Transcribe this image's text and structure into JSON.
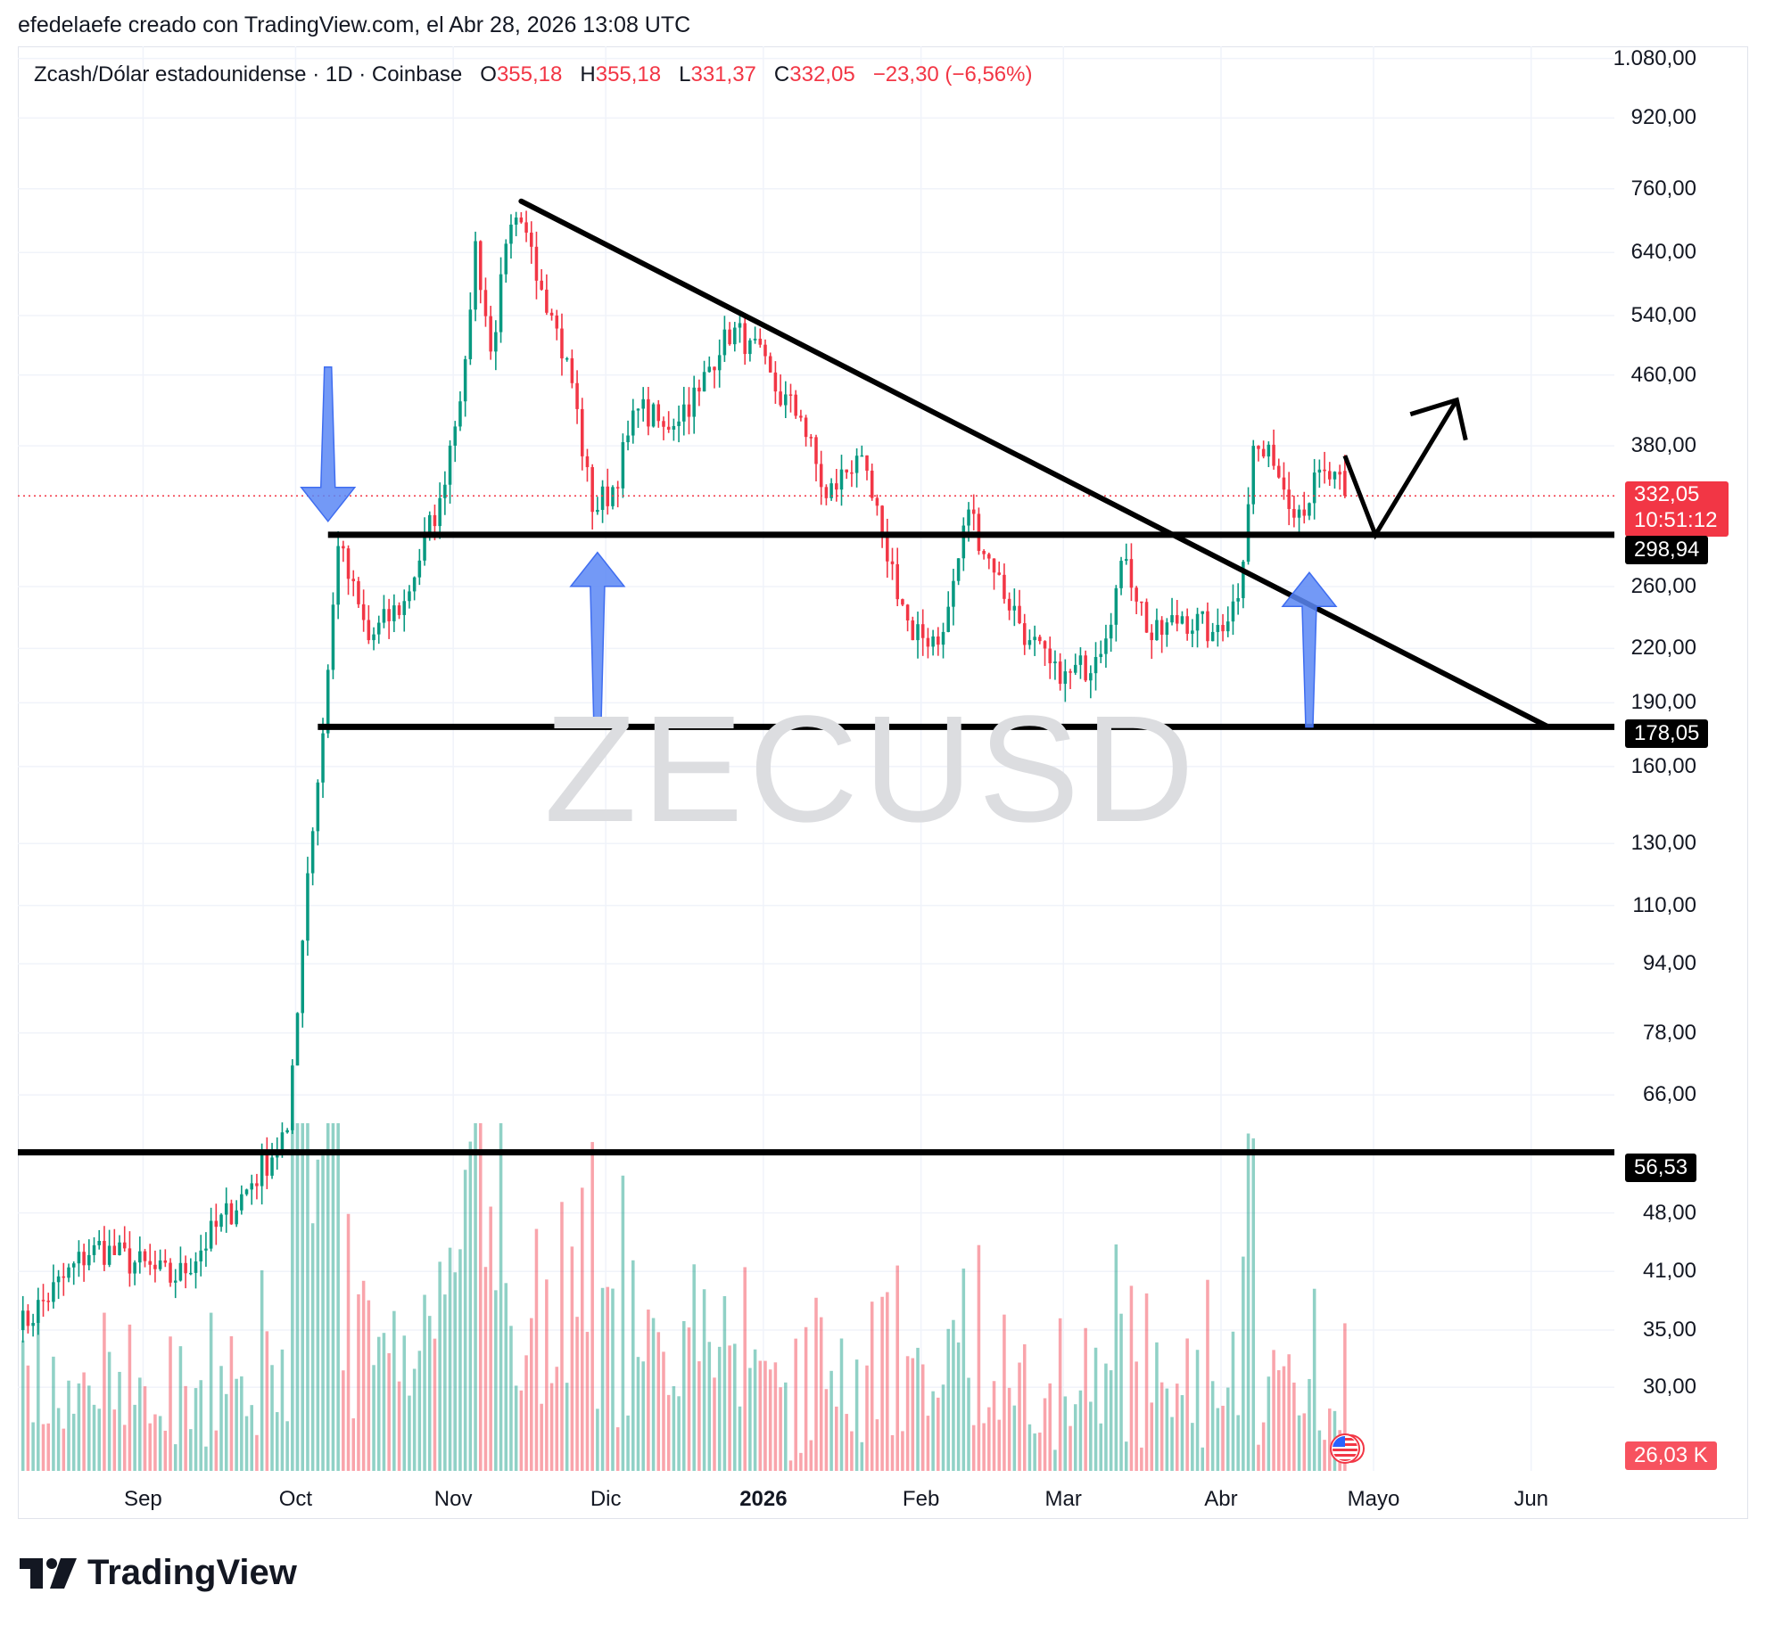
{
  "header": {
    "credit": "efedelaefe creado con TradingView.com, el Abr 28, 2026 13:08 UTC"
  },
  "legend": {
    "symbol": "Zcash/Dólar estadounidense · 1D · Coinbase",
    "o_label": "O",
    "o_value": "355,18",
    "h_label": "H",
    "h_value": "355,18",
    "l_label": "L",
    "l_value": "331,37",
    "c_label": "C",
    "c_value": "332,05",
    "change": "−23,30 (−6,56%)"
  },
  "watermark": "ZECUSD",
  "price_axis": {
    "labels": [
      "1.080,00",
      "920,00",
      "760,00",
      "640,00",
      "540,00",
      "460,00",
      "380,00",
      "260,00",
      "220,00",
      "190,00",
      "160,00",
      "130,00",
      "110,00",
      "94,00",
      "78,00",
      "66,00",
      "48,00",
      "41,00",
      "35,00",
      "30,00"
    ],
    "last_price": "332,05",
    "countdown": "10:51:12",
    "level_tags": [
      "298,94",
      "178,05",
      "56,53"
    ],
    "volume": "26,03 K"
  },
  "time_axis": {
    "labels": [
      "Sep",
      "Oct",
      "Nov",
      "Dic",
      "2026",
      "Feb",
      "Mar",
      "Abr",
      "Mayo",
      "Jun"
    ],
    "bold_label": "2026"
  },
  "brand": "TradingView",
  "colors": {
    "up": "#089981",
    "down": "#f23645",
    "arrow": "#5b87f5",
    "line": "#000000"
  },
  "chart_data": {
    "type": "candlestick",
    "symbol": "ZECUSD",
    "interval": "1D",
    "exchange": "Coinbase",
    "y_scale": "log",
    "ylim": [
      27,
      1100
    ],
    "x_range": [
      "2025-08-10",
      "2026-06-20"
    ],
    "last_ohlc": {
      "open": 355.18,
      "high": 355.18,
      "low": 331.37,
      "close": 332.05,
      "change": -23.3,
      "change_pct": -6.56
    },
    "last_volume": "26,03 K",
    "horizontal_levels": [
      298.94,
      178.05,
      56.53
    ],
    "trendline": {
      "from": [
        "2025-11-17",
        735
      ],
      "to": [
        "2026-06-07",
        178.05
      ]
    },
    "path_anchors": [
      [
        "2025-08-10",
        35
      ],
      [
        "2025-08-25",
        44
      ],
      [
        "2025-09-10",
        40
      ],
      [
        "2025-09-25",
        52
      ],
      [
        "2025-10-02",
        60
      ],
      [
        "2025-10-06",
        120
      ],
      [
        "2025-10-09",
        175
      ],
      [
        "2025-10-12",
        290
      ],
      [
        "2025-10-18",
        225
      ],
      [
        "2025-10-25",
        250
      ],
      [
        "2025-11-01",
        330
      ],
      [
        "2025-11-06",
        480
      ],
      [
        "2025-11-08",
        660
      ],
      [
        "2025-11-11",
        490
      ],
      [
        "2025-11-15",
        690
      ],
      [
        "2025-11-19",
        650
      ],
      [
        "2025-11-23",
        540
      ],
      [
        "2025-11-27",
        450
      ],
      [
        "2025-12-01",
        318
      ],
      [
        "2025-12-05",
        340
      ],
      [
        "2025-12-10",
        420
      ],
      [
        "2025-12-15",
        400
      ],
      [
        "2025-12-22",
        440
      ],
      [
        "2025-12-27",
        520
      ],
      [
        "2026-01-01",
        505
      ],
      [
        "2026-01-06",
        440
      ],
      [
        "2026-01-11",
        410
      ],
      [
        "2026-01-16",
        330
      ],
      [
        "2026-01-22",
        370
      ],
      [
        "2026-01-27",
        300
      ],
      [
        "2026-02-02",
        225
      ],
      [
        "2026-02-08",
        230
      ],
      [
        "2026-02-13",
        320
      ],
      [
        "2026-02-18",
        270
      ],
      [
        "2026-02-25",
        225
      ],
      [
        "2026-03-03",
        200
      ],
      [
        "2026-03-10",
        215
      ],
      [
        "2026-03-16",
        280
      ],
      [
        "2026-03-21",
        225
      ],
      [
        "2026-03-27",
        240
      ],
      [
        "2026-04-02",
        230
      ],
      [
        "2026-04-07",
        252
      ],
      [
        "2026-04-10",
        380
      ],
      [
        "2026-04-14",
        360
      ],
      [
        "2026-04-19",
        320
      ],
      [
        "2026-04-24",
        355
      ],
      [
        "2026-04-28",
        332.05
      ]
    ],
    "projection": [
      [
        "2026-04-28",
        370
      ],
      [
        "2026-05-04",
        298.94
      ],
      [
        "2026-05-20",
        430
      ]
    ],
    "annotations": [
      {
        "type": "arrow_down",
        "x": "2025-10-10",
        "from": 470,
        "to": 310
      },
      {
        "type": "arrow_up",
        "x": "2025-12-02",
        "from": 178,
        "to": 285
      },
      {
        "type": "arrow_up",
        "x": "2026-04-21",
        "from": 178,
        "to": 270
      }
    ]
  }
}
